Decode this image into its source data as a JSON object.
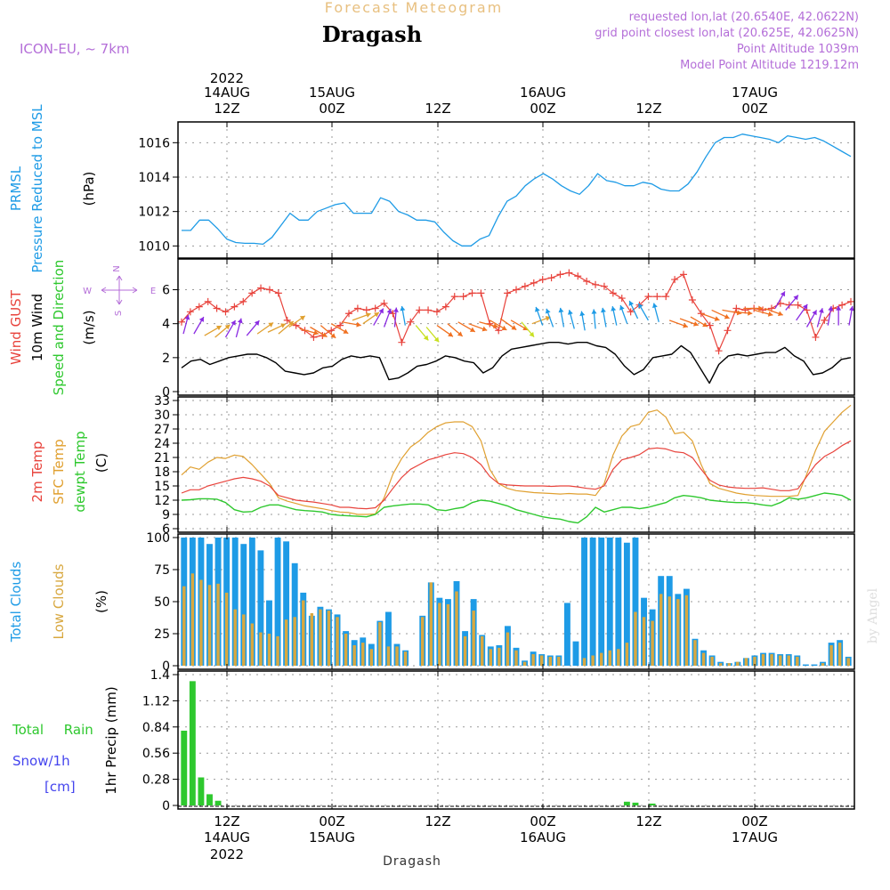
{
  "header": {
    "product_title": "Forecast Meteogram",
    "location": "Dragash",
    "model": "ICON-EU, ~ 7km",
    "requested": "requested lon,lat (20.6540E, 42.0622N)",
    "grid_point": "grid point closest lon,lat (20.625E, 42.0625N)",
    "point_altitude": "Point Altitude 1039m",
    "model_altitude": "Model Point Altitude 1219.12m",
    "footer_location": "Dragash",
    "watermark": "by Angel"
  },
  "colors": {
    "pressure": "#1e9be6",
    "gust": "#e8433c",
    "wind": "#000000",
    "temp2m": "#e8433c",
    "sfc": "#e0a030",
    "dewpt": "#2ec82e",
    "total_clouds": "#1e9be6",
    "low_clouds": "#d8a840",
    "rain": "#2ec82e",
    "snow": "#4444ee",
    "header_text": "#b46ed8",
    "title_text": "#e8c080"
  },
  "chart_data": [
    {
      "type": "line",
      "panel": "pressure",
      "label_line1": "PRMSL",
      "label_line2": "Pressure Reduced to MSL",
      "unit": "(hPa)",
      "ylim": [
        1009.5,
        1017.0
      ],
      "yticks": [
        "1010",
        "1012",
        "1014",
        "1016"
      ],
      "series": [
        {
          "values": [
            1010.9,
            1010.9,
            1011.5,
            1011.5,
            1011.0,
            1010.4,
            1010.2,
            1010.15,
            1010.15,
            1010.1,
            1010.5,
            1011.2,
            1011.9,
            1011.5,
            1011.5,
            1012.0,
            1012.2,
            1012.4,
            1012.5,
            1011.9,
            1011.9,
            1011.9,
            1012.8,
            1012.6,
            1012.0,
            1011.8,
            1011.5,
            1011.5,
            1011.4,
            1010.8,
            1010.3,
            1010.0,
            1010.0,
            1010.4,
            1010.6,
            1011.7,
            1012.6,
            1012.9,
            1013.5,
            1013.9,
            1014.2,
            1013.9,
            1013.5,
            1013.2,
            1013.0,
            1013.5,
            1014.2,
            1013.8,
            1013.7,
            1013.5,
            1013.5,
            1013.7,
            1013.6,
            1013.3,
            1013.2,
            1013.2,
            1013.6,
            1014.3,
            1015.2,
            1016.0,
            1016.3,
            1016.3,
            1016.5,
            1016.4,
            1016.3,
            1016.2,
            1016.0,
            1016.4,
            1016.3,
            1016.2,
            1016.3,
            1016.1,
            1015.8,
            1015.5,
            1015.2
          ]
        }
      ]
    },
    {
      "type": "line",
      "panel": "wind",
      "label_gust": "Wind GUST",
      "label_wind": "10m Wind",
      "label_dir": "Speed and Direction",
      "unit": "(m/s)",
      "compass": {
        "n": "N",
        "s": "S",
        "w": "W",
        "e": "E"
      },
      "ylim": [
        0,
        7.6
      ],
      "yticks": [
        "0",
        "2",
        "4",
        "6"
      ],
      "series": [
        {
          "name": "Wind GUST",
          "values": [
            4.1,
            4.7,
            5.0,
            5.3,
            4.9,
            4.7,
            5.0,
            5.3,
            5.8,
            6.1,
            6.0,
            5.8,
            4.2,
            3.9,
            3.6,
            3.2,
            3.3,
            3.6,
            3.9,
            4.6,
            4.9,
            4.8,
            4.9,
            5.2,
            4.6,
            2.9,
            4.1,
            4.8,
            4.8,
            4.7,
            5.0,
            5.6,
            5.6,
            5.8,
            5.8,
            4.0,
            3.6,
            5.8,
            6.0,
            6.2,
            6.4,
            6.6,
            6.7,
            6.9,
            7.0,
            6.8,
            6.5,
            6.3,
            6.2,
            5.8,
            5.5,
            4.7,
            5.1,
            5.6,
            5.6,
            5.6,
            6.6,
            6.9,
            5.4,
            4.6,
            3.9,
            2.4,
            3.6,
            4.9,
            4.8,
            4.9,
            4.8,
            4.9,
            5.2,
            5.1,
            5.1,
            4.8,
            3.2,
            4.2,
            4.9,
            5.1,
            5.3
          ]
        },
        {
          "name": "10m Wind",
          "values": [
            1.4,
            1.8,
            1.9,
            1.6,
            1.8,
            2.0,
            2.1,
            2.2,
            2.2,
            2.0,
            1.7,
            1.2,
            1.1,
            1.0,
            1.1,
            1.4,
            1.5,
            1.9,
            2.1,
            2.0,
            2.1,
            2.0,
            0.7,
            0.8,
            1.1,
            1.5,
            1.6,
            1.8,
            2.1,
            2.0,
            1.8,
            1.7,
            1.1,
            1.4,
            2.1,
            2.5,
            2.6,
            2.7,
            2.8,
            2.9,
            2.9,
            2.8,
            2.9,
            2.9,
            2.7,
            2.6,
            2.2,
            1.5,
            1.0,
            1.3,
            2.0,
            2.1,
            2.2,
            2.7,
            2.3,
            1.4,
            0.5,
            1.6,
            2.1,
            2.2,
            2.1,
            2.2,
            2.3,
            2.3,
            2.6,
            2.1,
            1.8,
            1.0,
            1.1,
            1.4,
            1.9,
            2.0
          ]
        }
      ],
      "arrows": {
        "speed": [
          3.4,
          3.4,
          3.3,
          3.2,
          3.2,
          3.2,
          3.3,
          3.4,
          3.5,
          3.4,
          3.8,
          3.7,
          3.8,
          3.9,
          4.0,
          4.1,
          4.2,
          4.0,
          3.9,
          3.8,
          3.8,
          3.9,
          3.9,
          3.8,
          3.9,
          4.0,
          4.1,
          4.0,
          4.1,
          4.2,
          4.3,
          4.2,
          4.1,
          4.0,
          3.9,
          3.8,
          3.8,
          3.7,
          3.6,
          3.7,
          3.8,
          3.9,
          4.0,
          4.3,
          4.2,
          4.1,
          4.2,
          4.3,
          4.4,
          4.6,
          4.8,
          4.8,
          4.7,
          4.9,
          4.8,
          4.9,
          4.9,
          4.8,
          4.2,
          3.8,
          3.8,
          3.9,
          3.9,
          3.9
        ],
        "dir": [
          195,
          210,
          240,
          230,
          210,
          195,
          220,
          235,
          245,
          230,
          235,
          285,
          300,
          310,
          300,
          280,
          250,
          235,
          210,
          200,
          185,
          170,
          320,
          320,
          305,
          310,
          300,
          290,
          285,
          300,
          305,
          300,
          320,
          250,
          160,
          160,
          170,
          165,
          170,
          175,
          170,
          168,
          160,
          155,
          150,
          165,
          290,
          290,
          300,
          290,
          295,
          280,
          275,
          270,
          285,
          290,
          210,
          220,
          215,
          210,
          195,
          190,
          180,
          190,
          225,
          300,
          310,
          320,
          300,
          275,
          270
        ]
      }
    },
    {
      "type": "line",
      "panel": "temperature",
      "label_t2m": "2m Temp",
      "label_sfc": "SFC Temp",
      "label_dew": "dewpt Temp",
      "unit": "(C)",
      "ylim": [
        6,
        33
      ],
      "yticks": [
        "6",
        "9",
        "12",
        "15",
        "18",
        "21",
        "24",
        "27",
        "30",
        "33"
      ],
      "series": [
        {
          "name": "2m Temp",
          "values": [
            13.5,
            14.2,
            14.2,
            15.0,
            15.5,
            16.0,
            16.5,
            16.8,
            16.5,
            16.0,
            15.0,
            13.0,
            12.5,
            12.0,
            11.8,
            11.6,
            11.3,
            11.0,
            10.5,
            10.5,
            10.3,
            10.2,
            10.4,
            12.0,
            14.5,
            16.8,
            18.5,
            19.5,
            20.5,
            21.0,
            21.6,
            22.0,
            21.8,
            21.0,
            19.5,
            17.0,
            15.5,
            15.2,
            15.1,
            15.0,
            15.0,
            15.0,
            14.9,
            15.0,
            15.0,
            14.8,
            14.5,
            14.3,
            15.0,
            18.5,
            20.5,
            21.0,
            21.6,
            22.8,
            23.0,
            22.8,
            22.2,
            22.0,
            21.0,
            18.5,
            16.2,
            15.2,
            14.8,
            14.6,
            14.5,
            14.5,
            14.6,
            14.3,
            14.0,
            14.0,
            14.4,
            17.0,
            19.5,
            21.2,
            22.2,
            23.5,
            24.5
          ]
        },
        {
          "name": "SFC Temp",
          "values": [
            17.3,
            19.0,
            18.5,
            20.0,
            21.0,
            20.8,
            21.5,
            21.2,
            19.5,
            17.5,
            15.5,
            12.5,
            11.8,
            11.3,
            10.8,
            10.5,
            10.2,
            9.8,
            9.5,
            9.4,
            9.0,
            9.0,
            9.1,
            12.5,
            17.5,
            20.8,
            23.2,
            24.5,
            26.3,
            27.5,
            28.3,
            28.5,
            28.5,
            27.5,
            24.5,
            18.5,
            15.5,
            14.5,
            14.0,
            13.8,
            13.6,
            13.5,
            13.4,
            13.3,
            13.4,
            13.3,
            13.3,
            13.0,
            15.5,
            21.5,
            25.5,
            27.5,
            28.0,
            30.5,
            31.0,
            29.5,
            26.0,
            26.3,
            24.5,
            19.5,
            15.5,
            14.5,
            14.0,
            13.5,
            13.2,
            13.0,
            12.9,
            12.8,
            12.8,
            12.8,
            13.0,
            17.5,
            22.5,
            26.5,
            28.5,
            30.5,
            32.0
          ]
        },
        {
          "name": "dewpt Temp",
          "values": [
            12.0,
            12.1,
            12.3,
            12.3,
            12.2,
            11.5,
            10.0,
            9.5,
            9.6,
            10.5,
            11.0,
            11.0,
            10.5,
            10.0,
            9.8,
            9.7,
            9.5,
            9.0,
            8.8,
            8.7,
            8.6,
            8.5,
            9.0,
            10.5,
            10.8,
            11.0,
            11.2,
            11.2,
            11.0,
            10.0,
            9.8,
            10.2,
            10.5,
            11.5,
            12.0,
            11.8,
            11.3,
            10.8,
            10.0,
            9.5,
            9.0,
            8.5,
            8.2,
            8.0,
            7.5,
            7.2,
            8.5,
            10.5,
            9.5,
            10.0,
            10.5,
            10.5,
            10.2,
            10.5,
            11.0,
            11.5,
            12.5,
            13.0,
            12.8,
            12.5,
            12.0,
            11.8,
            11.6,
            11.5,
            11.5,
            11.3,
            11.0,
            10.8,
            11.5,
            12.5,
            12.2,
            12.5,
            13.0,
            13.5,
            13.3,
            13.0,
            12.0
          ]
        }
      ]
    },
    {
      "type": "bar",
      "panel": "clouds",
      "label_total": "Total Clouds",
      "label_low": "Low Clouds",
      "unit": "(%)",
      "ylim": [
        0,
        100
      ],
      "yticks": [
        "0",
        "25",
        "50",
        "75",
        "100"
      ],
      "series": [
        {
          "name": "Total Clouds",
          "values": [
            100,
            100,
            100,
            95,
            100,
            100,
            100,
            95,
            100,
            90,
            51,
            100,
            97,
            80,
            57,
            39,
            46,
            44,
            40,
            27,
            20,
            22,
            17,
            35,
            42,
            17,
            12,
            0,
            39,
            65,
            53,
            52,
            66,
            27,
            52,
            24,
            15,
            16,
            31,
            14,
            4,
            11,
            9,
            8,
            8,
            49,
            19,
            100,
            100,
            100,
            100,
            100,
            96,
            100,
            53,
            44,
            70,
            70,
            56,
            60,
            21,
            12,
            8,
            3,
            2,
            3,
            6,
            8,
            10,
            10,
            9,
            9,
            8,
            1,
            1,
            3,
            18,
            20,
            7
          ]
        },
        {
          "name": "Low Clouds",
          "values": [
            62,
            72,
            67,
            63,
            64,
            57,
            44,
            40,
            33,
            26,
            25,
            23,
            36,
            38,
            51,
            41,
            44,
            43,
            38,
            25,
            16,
            18,
            13,
            34,
            15,
            15,
            11,
            0,
            38,
            65,
            49,
            48,
            58,
            23,
            43,
            23,
            13,
            14,
            26,
            12,
            3,
            9,
            8,
            7,
            7,
            0,
            0,
            6,
            8,
            10,
            12,
            13,
            18,
            42,
            38,
            35,
            56,
            54,
            52,
            55,
            20,
            10,
            7,
            2,
            2,
            3,
            6,
            7,
            9,
            9,
            8,
            8,
            7,
            0,
            0,
            2,
            16,
            18,
            6
          ]
        }
      ]
    },
    {
      "type": "bar",
      "panel": "precip",
      "label_rain": "Total Rain",
      "label_snow": "Snow/1h",
      "label_cm": "[cm]",
      "ylabel": "1hr Precip (mm)",
      "ylim": [
        0,
        1.4
      ],
      "yticks": [
        "0",
        "0.28",
        "0.56",
        "0.84",
        "1.12",
        "1.4"
      ],
      "series": [
        {
          "name": "Total Rain",
          "values": [
            0.8,
            1.33,
            0.3,
            0.12,
            0.05,
            0,
            0,
            0,
            0,
            0,
            0,
            0,
            0,
            0,
            0,
            0,
            0,
            0,
            0,
            0,
            0,
            0,
            0,
            0,
            0,
            0,
            0,
            0,
            0,
            0,
            0,
            0,
            0,
            0,
            0,
            0,
            0,
            0,
            0,
            0,
            0,
            0,
            0,
            0,
            0,
            0,
            0,
            0,
            0,
            0,
            0,
            0,
            0.04,
            0.03,
            0,
            0.02,
            0,
            0,
            0,
            0,
            0,
            0,
            0,
            0,
            0,
            0,
            0,
            0,
            0,
            0,
            0,
            0,
            0,
            0,
            0,
            0,
            0,
            0,
            0,
            0,
            0,
            0,
            0,
            0,
            0
          ]
        }
      ]
    },
    {
      "type": "axis",
      "panel": "time",
      "top_year": "2022",
      "top_dates": [
        "14AUG",
        "15AUG",
        "",
        "16AUG",
        "",
        "17AUG"
      ],
      "times": [
        "12Z",
        "00Z",
        "12Z",
        "00Z",
        "12Z",
        "00Z"
      ],
      "bottom_dates": [
        "14AUG",
        "15AUG",
        "",
        "16AUG",
        "",
        "17AUG"
      ],
      "bottom_year": "2022"
    }
  ]
}
